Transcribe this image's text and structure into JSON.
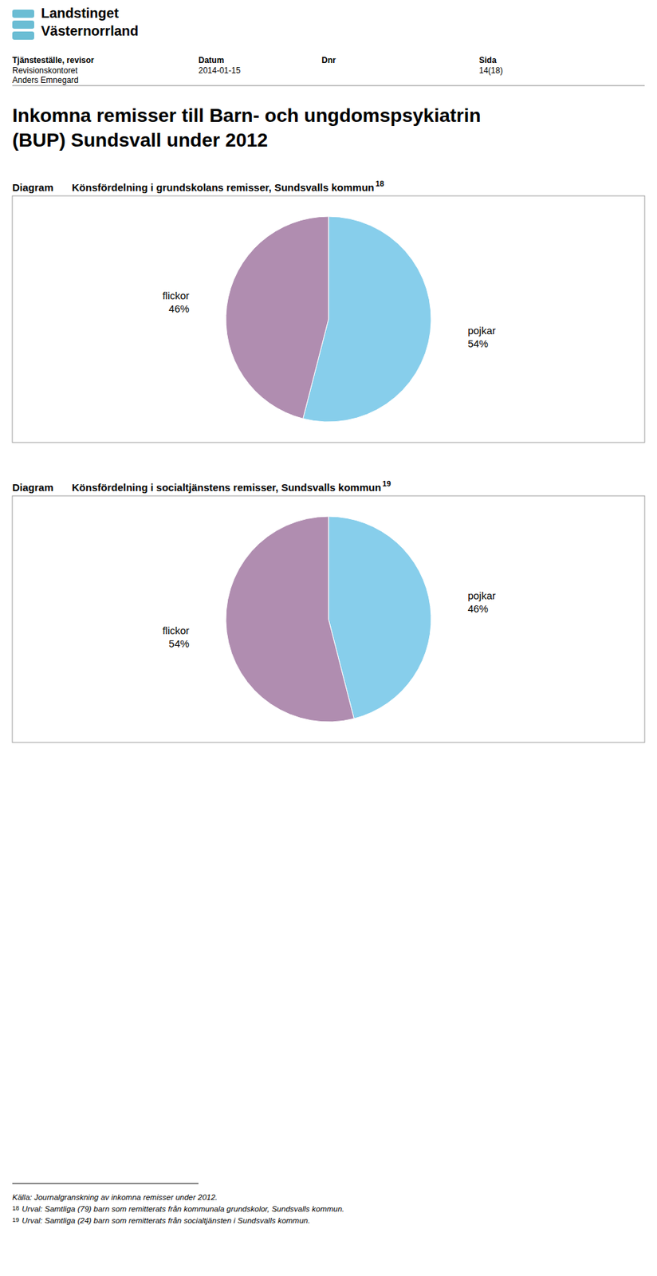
{
  "title": [
    "Inkomna remisser till Barn- och ungdomspsykiatrin",
    "(BUP) Sundsvall under 2012"
  ],
  "annotations": [
    "Landstinget",
    "Västernorrland",
    "Tjänsteställe, revisor",
    "Revisionskontoret",
    "Anders Emnegard",
    "Datum",
    "2014-01-15",
    "Dnr",
    "Sida",
    "14(18)",
    "Källa: Journalgranskning av inkomna remisser under 2012.",
    "18",
    "Urval: Samtliga (79) barn som remitterats från kommunala grundskolor, Sundsvalls kommun.",
    "19",
    "Urval: Samtliga (24) barn som remitterats från socialtjänsten i Sundsvalls kommun."
  ],
  "chart_data": [
    {
      "type": "pie",
      "title": "Könsfördelning i grundskolans remisser, Sundsvalls kommun",
      "annotations": [
        "Diagram",
        "18"
      ],
      "categories": [
        "pojkar",
        "flickor"
      ],
      "values": [
        54,
        46
      ],
      "colors": [
        "#87CEEB",
        "#B08DB0"
      ],
      "data_labels": true,
      "value_labels": [
        "54%",
        "46%"
      ]
    },
    {
      "type": "pie",
      "title": "Könsfördelning i socialtjänstens remisser, Sundsvalls kommun",
      "annotations": [
        "Diagram",
        "19"
      ],
      "categories": [
        "pojkar",
        "flickor"
      ],
      "values": [
        46,
        54
      ],
      "colors": [
        "#87CEEB",
        "#B08DB0"
      ],
      "data_labels": true,
      "value_labels": [
        "46%",
        "54%"
      ]
    }
  ]
}
